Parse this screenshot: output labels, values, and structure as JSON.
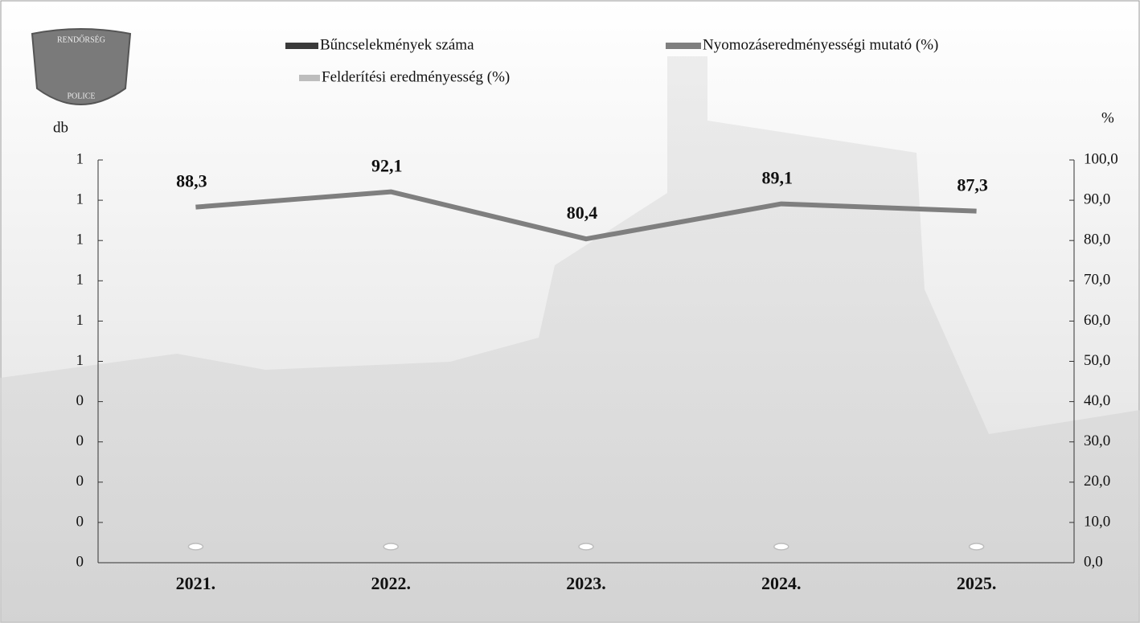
{
  "chart_data": {
    "type": "combo",
    "logo": [
      "RENDŐRSÉG",
      "POLICE"
    ],
    "y_label": "db",
    "y2_label": "%",
    "categories": [
      "2021.",
      "2022.",
      "2023.",
      "2024.",
      "2025."
    ],
    "series": [
      {
        "name": "Bűncselekmények száma",
        "type": "bar",
        "color": "#3a3a3a",
        "values": [
          0,
          0,
          0,
          0,
          0
        ]
      },
      {
        "name": "Nyomozáseredményességi mutató (%)",
        "type": "line",
        "axis": "y2",
        "color": "#7f7f7f",
        "values": [
          88.3,
          92.1,
          80.4,
          89.1,
          87.3
        ],
        "value_labels": [
          "88,3",
          "92,1",
          "80,4",
          "89,1",
          "87,3"
        ]
      },
      {
        "name": "Felderítési eredményesség (%)",
        "type": "marker",
        "axis": "y2",
        "color": "#bdbdbd",
        "values": [
          4,
          4,
          4,
          4,
          4
        ]
      }
    ],
    "ylim": [
      0,
      1
    ],
    "yticks": [
      {
        "value": 0,
        "label": "0"
      },
      {
        "value": 0.1,
        "label": "0"
      },
      {
        "value": 0.2,
        "label": "0"
      },
      {
        "value": 0.3,
        "label": "0"
      },
      {
        "value": 0.4,
        "label": "0"
      },
      {
        "value": 0.5,
        "label": "1"
      },
      {
        "value": 0.6,
        "label": "1"
      },
      {
        "value": 0.7,
        "label": "1"
      },
      {
        "value": 0.8,
        "label": "1"
      },
      {
        "value": 0.9,
        "label": "1"
      },
      {
        "value": 1,
        "label": "1"
      }
    ],
    "y2lim": [
      0,
      100
    ],
    "y2ticks": [
      {
        "value": 0,
        "label": "0,0"
      },
      {
        "value": 10,
        "label": "10,0"
      },
      {
        "value": 20,
        "label": "20,0"
      },
      {
        "value": 30,
        "label": "30,0"
      },
      {
        "value": 40,
        "label": "40,0"
      },
      {
        "value": 50,
        "label": "50,0"
      },
      {
        "value": 60,
        "label": "60,0"
      },
      {
        "value": 70,
        "label": "70,0"
      },
      {
        "value": 80,
        "label": "80,0"
      },
      {
        "value": 90,
        "label": "90,0"
      },
      {
        "value": 100,
        "label": "100,0"
      }
    ]
  }
}
